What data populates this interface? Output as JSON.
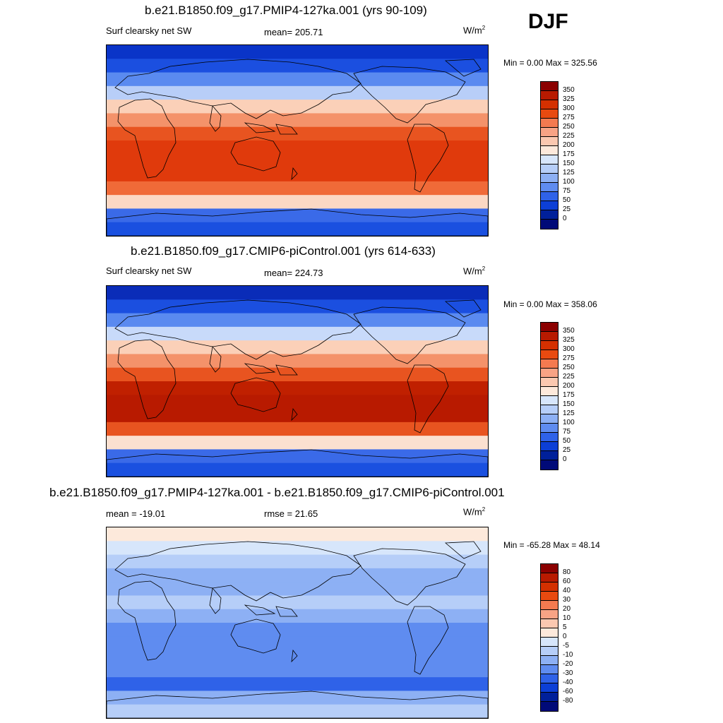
{
  "season": "DJF",
  "panels": [
    {
      "title": "b.e21.B1850.f09_g17.PMIP4-127ka.001 (yrs 90-109)",
      "left_label": "Surf clearsky net SW",
      "center_label": "mean= 205.71",
      "unit_base": "W/m",
      "unit_sup": "2",
      "minmax": "Min =   0.00 Max = 325.56",
      "colorbar_ticks": [
        "350",
        "325",
        "300",
        "275",
        "250",
        "225",
        "200",
        "175",
        "150",
        "125",
        "100",
        "75",
        "50",
        "25",
        "0"
      ],
      "colorbar_colors": [
        "#8b0000",
        "#b81a00",
        "#d43000",
        "#e84a10",
        "#f47a50",
        "#f8a385",
        "#fbc8b0",
        "#fde9db",
        "#d7e6fb",
        "#b6cef8",
        "#8db0f4",
        "#5f8cf0",
        "#2f62e8",
        "#0c3fd6",
        "#00209a",
        "#000a78"
      ]
    },
    {
      "title": "b.e21.B1850.f09_g17.CMIP6-piControl.001 (yrs 614-633)",
      "left_label": "Surf clearsky net SW",
      "center_label": "mean= 224.73",
      "unit_base": "W/m",
      "unit_sup": "2",
      "minmax": "Min =   0.00 Max = 358.06",
      "colorbar_ticks": [
        "350",
        "325",
        "300",
        "275",
        "250",
        "225",
        "200",
        "175",
        "150",
        "125",
        "100",
        "75",
        "50",
        "25",
        "0"
      ],
      "colorbar_colors": [
        "#8b0000",
        "#b81a00",
        "#d43000",
        "#e84a10",
        "#f47a50",
        "#f8a385",
        "#fbc8b0",
        "#fde9db",
        "#d7e6fb",
        "#b6cef8",
        "#8db0f4",
        "#5f8cf0",
        "#2f62e8",
        "#0c3fd6",
        "#00209a",
        "#000a78"
      ]
    },
    {
      "title": "b.e21.B1850.f09_g17.PMIP4-127ka.001 - b.e21.B1850.f09_g17.CMIP6-piControl.001",
      "left_label": "mean = -19.01",
      "center_label": "rmse =  21.65",
      "unit_base": "W/m",
      "unit_sup": "2",
      "minmax": "Min = -65.28 Max =  48.14",
      "colorbar_ticks": [
        "80",
        "60",
        "40",
        "30",
        "20",
        "10",
        "5",
        "0",
        "-5",
        "-10",
        "-20",
        "-30",
        "-40",
        "-60",
        "-80"
      ],
      "colorbar_colors": [
        "#8b0000",
        "#b81a00",
        "#d43000",
        "#e84a10",
        "#f47a50",
        "#f8a385",
        "#fbc8b0",
        "#fde9db",
        "#d7e6fb",
        "#b6cef8",
        "#8db0f4",
        "#5f8cf0",
        "#2f62e8",
        "#0c3fd6",
        "#00209a",
        "#000a78"
      ]
    }
  ],
  "bands": {
    "panel1": [
      "#0a34c8",
      "#1b4fe0",
      "#5a8af0",
      "#b8cef8",
      "#fbd0b8",
      "#f4926a",
      "#e85420",
      "#e03a0c",
      "#e03a0c",
      "#e03a0c",
      "#f06a38",
      "#fbd8c4",
      "#3a6ae8",
      "#1a50e0"
    ],
    "panel2": [
      "#0a2cb8",
      "#1b4fe0",
      "#5a8af0",
      "#c8dafa",
      "#fbd0b8",
      "#f4926a",
      "#e85420",
      "#c02000",
      "#b81a00",
      "#b81a00",
      "#e85420",
      "#fbe0d0",
      "#3a6ae8",
      "#1a50e0"
    ],
    "panel3": [
      "#fde9db",
      "#d7e6fb",
      "#b6cef8",
      "#8db0f4",
      "#8db0f4",
      "#b6cef8",
      "#8db0f4",
      "#5f8cf0",
      "#5f8cf0",
      "#5f8cf0",
      "#5f8cf0",
      "#2f62e8",
      "#8db0f4",
      "#b6cef8"
    ]
  }
}
